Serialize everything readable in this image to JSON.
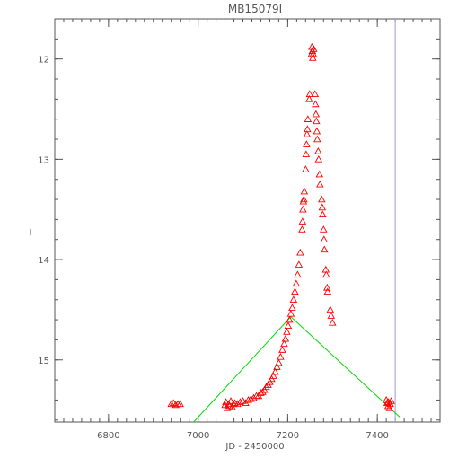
{
  "chart_data": {
    "type": "scatter",
    "title": "MB15079I",
    "xlabel": "JD - 2450000",
    "ylabel": "I",
    "xlim": [
      6680,
      7540
    ],
    "ylim": [
      15.62,
      11.6
    ],
    "y_inverted": true,
    "x_ticks": [
      6800,
      7000,
      7200,
      7400
    ],
    "y_ticks": [
      12,
      13,
      14,
      15
    ],
    "x_minor_step": 20,
    "y_minor_step": 0.2,
    "grid": false,
    "colors": {
      "points": "#ff0000",
      "model_line": "#00dd00",
      "vertical_line": "#9999cc",
      "axis": "#555555"
    },
    "points": [
      [
        6940,
        15.44
      ],
      [
        6945,
        15.43
      ],
      [
        6950,
        15.45
      ],
      [
        6955,
        15.44
      ],
      [
        6960,
        15.44
      ],
      [
        7060,
        15.45
      ],
      [
        7062,
        15.42
      ],
      [
        7065,
        15.48
      ],
      [
        7068,
        15.44
      ],
      [
        7070,
        15.46
      ],
      [
        7073,
        15.41
      ],
      [
        7076,
        15.47
      ],
      [
        7079,
        15.44
      ],
      [
        7082,
        15.43
      ],
      [
        7088,
        15.44
      ],
      [
        7094,
        15.42
      ],
      [
        7100,
        15.41
      ],
      [
        7106,
        15.43
      ],
      [
        7112,
        15.4
      ],
      [
        7118,
        15.39
      ],
      [
        7124,
        15.38
      ],
      [
        7130,
        15.36
      ],
      [
        7135,
        15.36
      ],
      [
        7140,
        15.33
      ],
      [
        7144,
        15.32
      ],
      [
        7148,
        15.3
      ],
      [
        7152,
        15.27
      ],
      [
        7156,
        15.25
      ],
      [
        7160,
        15.22
      ],
      [
        7164,
        15.19
      ],
      [
        7168,
        15.16
      ],
      [
        7172,
        15.12
      ],
      [
        7176,
        15.07
      ],
      [
        7180,
        15.03
      ],
      [
        7184,
        14.97
      ],
      [
        7188,
        14.9
      ],
      [
        7192,
        14.84
      ],
      [
        7195,
        14.79
      ],
      [
        7198,
        14.72
      ],
      [
        7201,
        14.66
      ],
      [
        7204,
        14.6
      ],
      [
        7207,
        14.54
      ],
      [
        7210,
        14.48
      ],
      [
        7213,
        14.4
      ],
      [
        7216,
        14.32
      ],
      [
        7219,
        14.24
      ],
      [
        7222,
        14.15
      ],
      [
        7225,
        14.05
      ],
      [
        7228,
        13.93
      ],
      [
        7232,
        13.7
      ],
      [
        7233,
        13.62
      ],
      [
        7234,
        13.5
      ],
      [
        7235,
        13.42
      ],
      [
        7236,
        13.4
      ],
      [
        7237,
        13.32
      ],
      [
        7240,
        13.1
      ],
      [
        7241,
        12.95
      ],
      [
        7242,
        12.85
      ],
      [
        7243,
        12.75
      ],
      [
        7244,
        12.7
      ],
      [
        7245,
        12.6
      ],
      [
        7248,
        12.4
      ],
      [
        7249,
        12.35
      ],
      [
        7253,
        11.95
      ],
      [
        7254,
        11.88
      ],
      [
        7255,
        11.92
      ],
      [
        7256,
        11.99
      ],
      [
        7257,
        11.95
      ],
      [
        7258,
        11.9
      ],
      [
        7261,
        12.35
      ],
      [
        7262,
        12.45
      ],
      [
        7263,
        12.55
      ],
      [
        7264,
        12.62
      ],
      [
        7265,
        12.72
      ],
      [
        7266,
        12.8
      ],
      [
        7268,
        12.92
      ],
      [
        7269,
        13.0
      ],
      [
        7271,
        13.15
      ],
      [
        7272,
        13.25
      ],
      [
        7276,
        13.4
      ],
      [
        7277,
        13.48
      ],
      [
        7278,
        13.55
      ],
      [
        7280,
        13.7
      ],
      [
        7281,
        13.8
      ],
      [
        7282,
        13.9
      ],
      [
        7285,
        14.1
      ],
      [
        7286,
        14.15
      ],
      [
        7288,
        14.28
      ],
      [
        7289,
        14.32
      ],
      [
        7295,
        14.5
      ],
      [
        7297,
        14.56
      ],
      [
        7300,
        14.63
      ],
      [
        7420,
        15.4
      ],
      [
        7422,
        15.43
      ],
      [
        7424,
        15.46
      ],
      [
        7425,
        15.42
      ],
      [
        7427,
        15.48
      ],
      [
        7429,
        15.44
      ],
      [
        7431,
        15.41
      ]
    ],
    "model_line": [
      [
        6990,
        15.62
      ],
      [
        7207,
        14.57
      ],
      [
        7450,
        15.57
      ]
    ],
    "vertical_line_x": 7440
  }
}
